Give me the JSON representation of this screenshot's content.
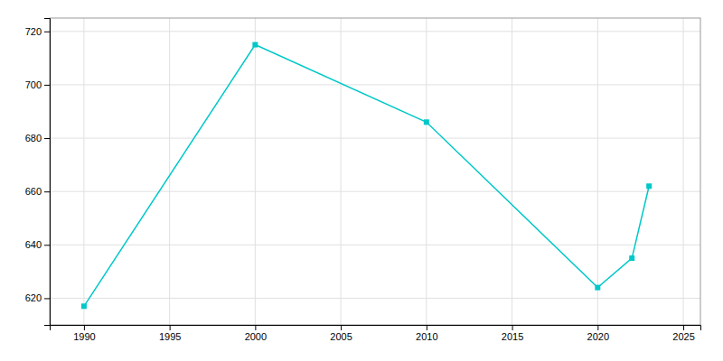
{
  "chart_data": {
    "type": "line",
    "x": [
      1990,
      2000,
      2010,
      2020,
      2022,
      2023
    ],
    "values": [
      617,
      715,
      686,
      624,
      635,
      662
    ],
    "color": "#00C8C8",
    "marker": "square",
    "xlim": [
      1988,
      2026
    ],
    "xticks": [
      1990,
      1995,
      2000,
      2005,
      2010,
      2015,
      2020,
      2025
    ],
    "ylim": [
      610,
      725
    ],
    "yticks": [
      620,
      640,
      660,
      680,
      700,
      720
    ],
    "grid": true
  }
}
